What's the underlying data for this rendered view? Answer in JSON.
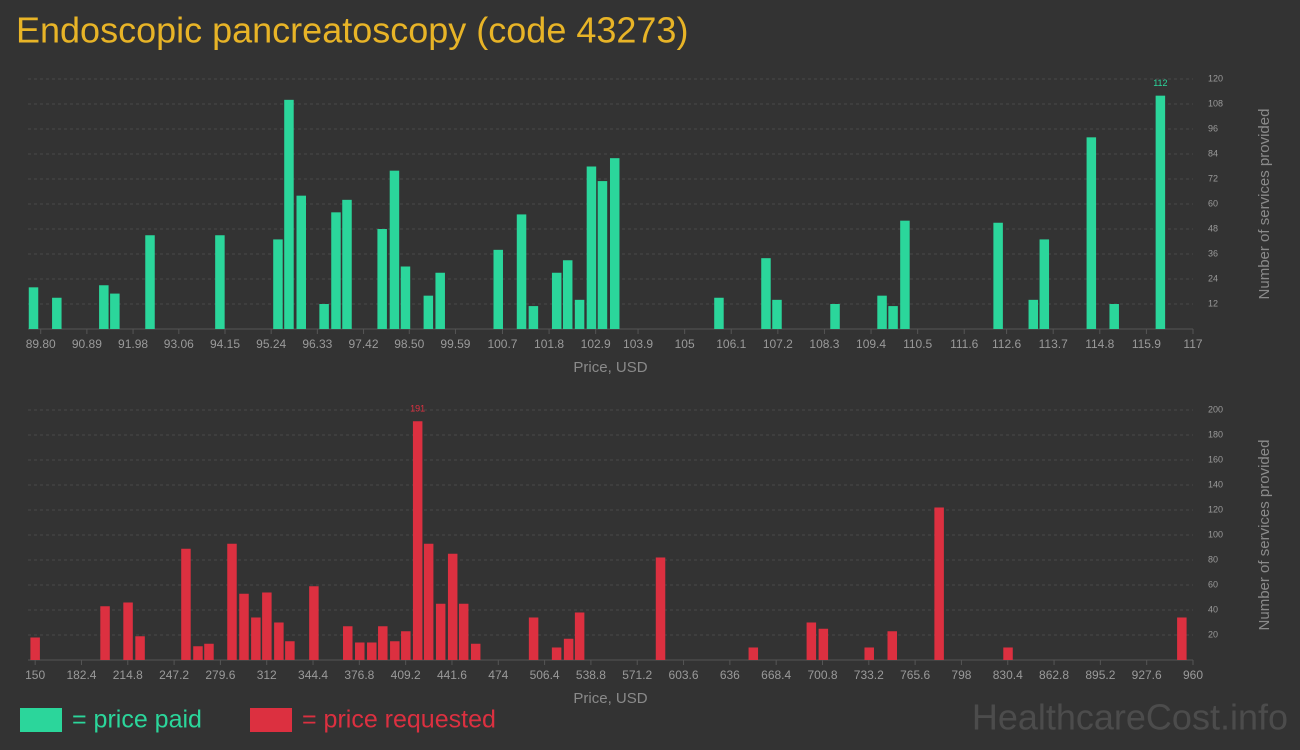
{
  "title": "Endoscopic pancreatoscopy (code 43273)",
  "watermark": "HealthcareCost.info",
  "chart_data": [
    {
      "type": "bar",
      "x_label": "Price, USD",
      "y_label": "Number of services provided",
      "xlim": [
        89.5,
        117
      ],
      "ylim": [
        0,
        120
      ],
      "xticks": [
        {
          "value": 89.8,
          "label": "89.80"
        },
        90.89,
        91.98,
        93.06,
        94.15,
        95.24,
        96.33,
        97.42,
        {
          "value": 98.5,
          "label": "98.50"
        },
        99.59,
        100.7,
        101.8,
        102.9,
        103.9,
        105,
        106.1,
        107.2,
        108.3,
        109.4,
        110.5,
        111.6,
        112.6,
        113.7,
        114.8,
        115.9,
        117
      ],
      "yticks": [
        12,
        24,
        36,
        48,
        60,
        72,
        84,
        96,
        108,
        120
      ],
      "grid": true,
      "max_label": true,
      "x": [
        89.63,
        90.18,
        91.29,
        91.55,
        92.38,
        94.03,
        95.4,
        95.66,
        95.95,
        96.49,
        96.77,
        97.03,
        97.86,
        98.15,
        98.41,
        98.95,
        99.23,
        100.6,
        101.15,
        101.43,
        101.98,
        102.24,
        102.52,
        102.8,
        103.06,
        103.35,
        105.81,
        106.92,
        107.18,
        108.55,
        109.66,
        109.92,
        110.2,
        112.4,
        113.23,
        113.49,
        114.6,
        115.14,
        116.23
      ],
      "series": [
        {
          "name": "= price paid",
          "color": "#2bd69b",
          "values": [
            20,
            15,
            21,
            17,
            45,
            45,
            43,
            110,
            64,
            12,
            56,
            62,
            48,
            76,
            30,
            16,
            27,
            38,
            55,
            11,
            27,
            33,
            14,
            78,
            71,
            82,
            15,
            34,
            14,
            12,
            16,
            11,
            52,
            51,
            14,
            43,
            92,
            12,
            112
          ]
        }
      ]
    },
    {
      "type": "bar",
      "x_label": "Price, USD",
      "y_label": "Number of services provided",
      "xlim": [
        145,
        960
      ],
      "ylim": [
        0,
        200
      ],
      "xticks": [
        150,
        182.4,
        214.8,
        247.2,
        279.6,
        312,
        344.4,
        376.8,
        409.2,
        441.6,
        474,
        506.4,
        538.8,
        571.2,
        603.6,
        636,
        668.4,
        700.8,
        733.2,
        765.6,
        798,
        830.4,
        862.8,
        895.2,
        927.6,
        960
      ],
      "yticks": [
        20,
        40,
        60,
        80,
        100,
        120,
        140,
        160,
        180,
        200
      ],
      "grid": true,
      "max_label": true,
      "x": [
        150,
        198.9,
        215.0,
        223.4,
        255.5,
        263.9,
        271.6,
        287.7,
        296.1,
        304.4,
        312.1,
        320.5,
        328.2,
        345.0,
        368.7,
        377.1,
        385.5,
        393.2,
        401.6,
        409.3,
        417.6,
        425.3,
        433.7,
        442.1,
        449.8,
        458.2,
        498.7,
        514.8,
        523.2,
        530.9,
        587.5,
        652.4,
        693.0,
        701.4,
        733.5,
        749.6,
        782.4,
        830.6,
        952.2
      ],
      "series": [
        {
          "name": "= price requested",
          "color": "#dc3040",
          "values": [
            18,
            43,
            46,
            19,
            89,
            11,
            13,
            93,
            53,
            34,
            54,
            30,
            15,
            59,
            27,
            14,
            14,
            27,
            15,
            23,
            191,
            93,
            45,
            85,
            45,
            13,
            34,
            10,
            17,
            38,
            82,
            10,
            30,
            25,
            10,
            23,
            122,
            10,
            34
          ]
        }
      ]
    }
  ]
}
